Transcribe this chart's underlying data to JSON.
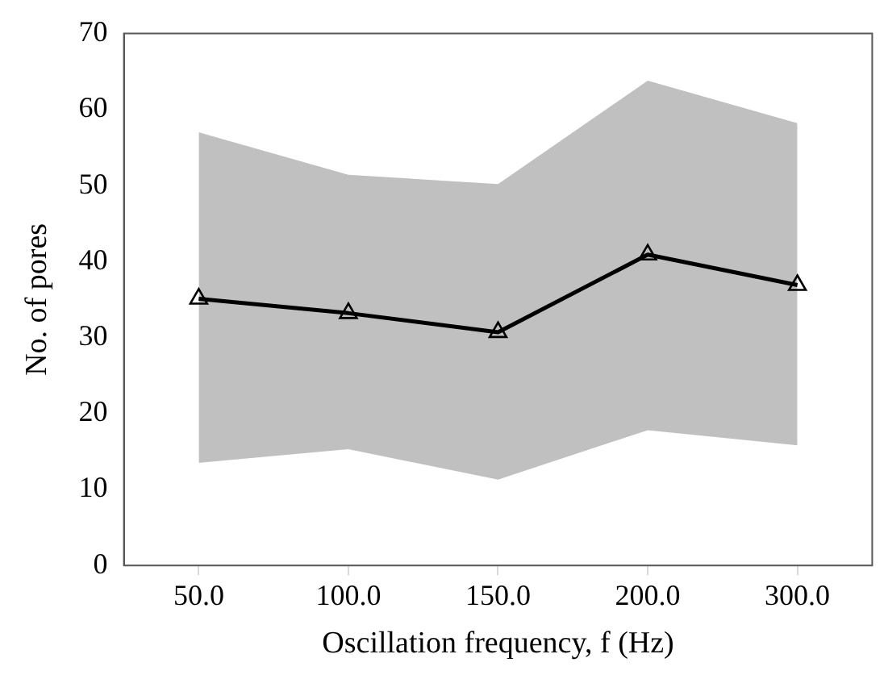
{
  "chart_data": {
    "type": "line",
    "xlabel": "Oscillation frequency, f (Hz)",
    "ylabel": "No. of pores",
    "categories": [
      "50.0",
      "100.0",
      "150.0",
      "200.0",
      "300.0"
    ],
    "series": [
      {
        "color": "#000000",
        "values": [
          35.1,
          33.2,
          30.7,
          40.9,
          36.9
        ],
        "lower": [
          13.5,
          15.3,
          11.3,
          17.8,
          15.8
        ],
        "upper": [
          57.0,
          51.4,
          50.2,
          63.8,
          58.2
        ]
      }
    ],
    "ylim": [
      0,
      70
    ],
    "yticks": [
      0,
      10,
      20,
      30,
      40,
      50,
      60,
      70
    ],
    "grid": false,
    "legend": false,
    "marker": "triangle",
    "line_style": "solid"
  }
}
